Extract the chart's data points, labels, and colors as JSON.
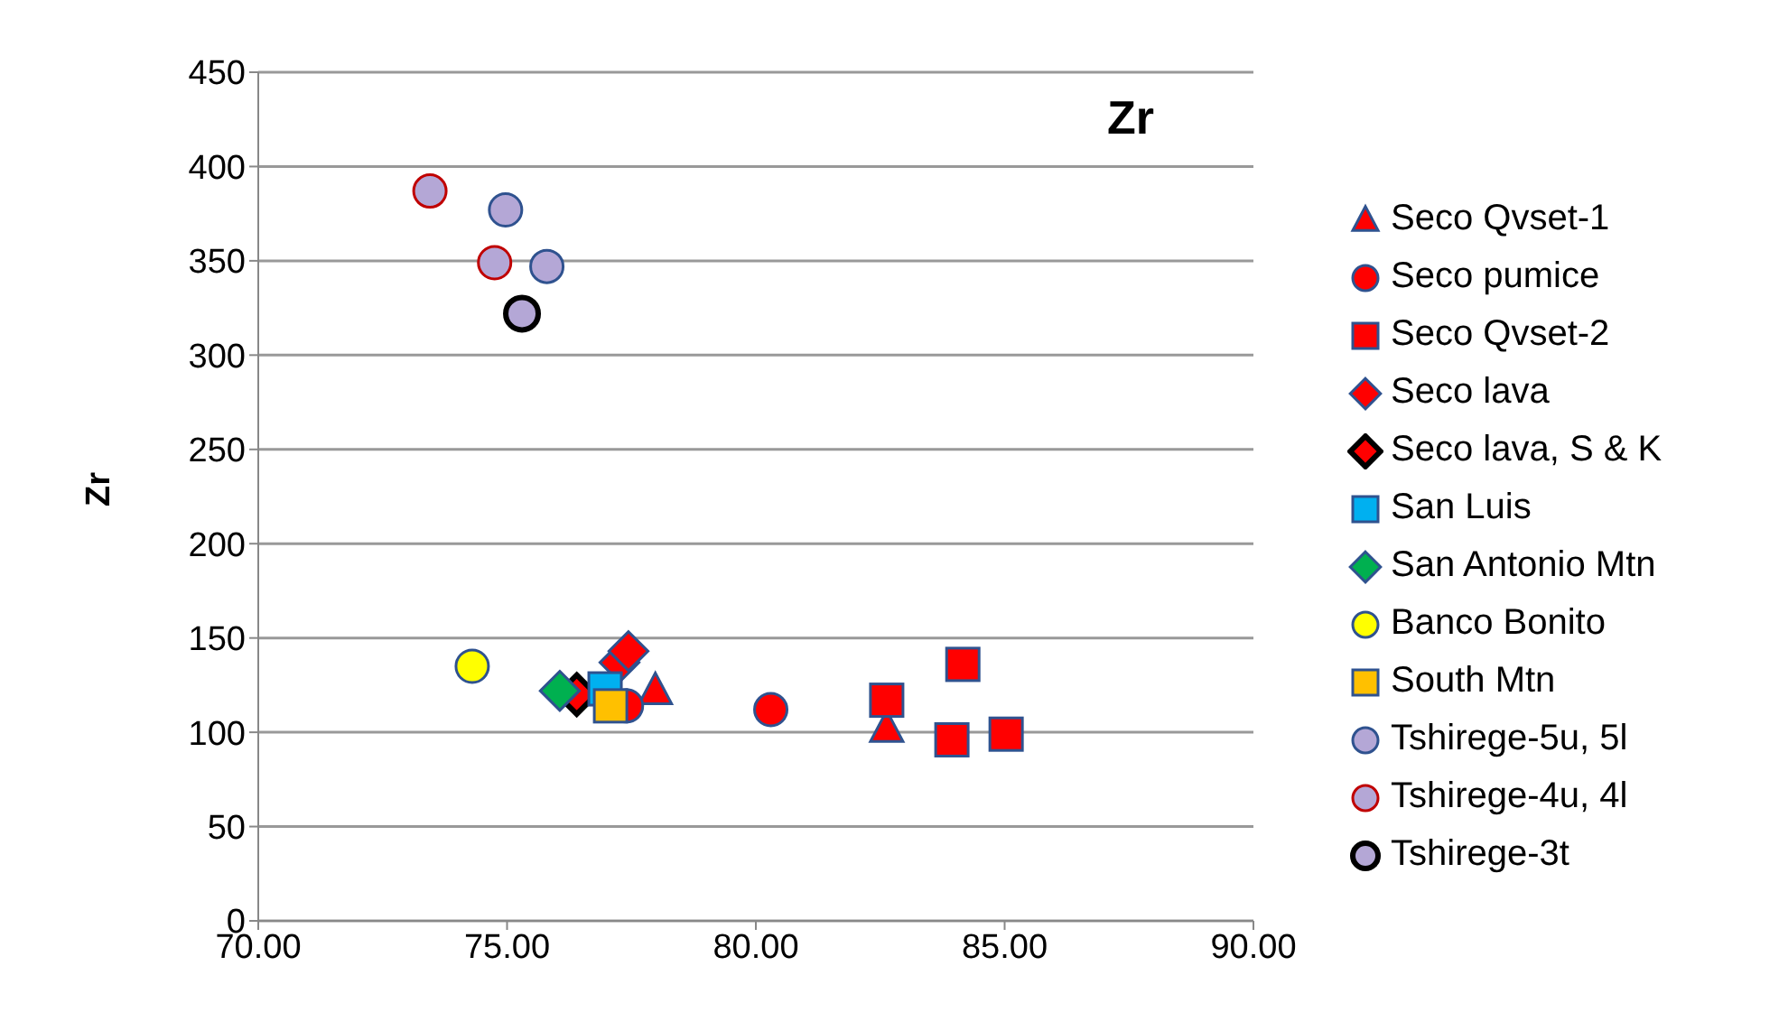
{
  "chart_data": {
    "type": "scatter",
    "title": "Zr",
    "ylabel": "Zr",
    "xlim": [
      70,
      90
    ],
    "xticks": [
      {
        "value": 70,
        "label": "70.00"
      },
      {
        "value": 75,
        "label": "75.00"
      },
      {
        "value": 80,
        "label": "80.00"
      },
      {
        "value": 85,
        "label": "85.00"
      },
      {
        "value": 90,
        "label": "90.00"
      }
    ],
    "ylim": [
      0,
      450
    ],
    "yticks": [
      0,
      50,
      100,
      150,
      200,
      250,
      300,
      350,
      400,
      450
    ],
    "grid": "y",
    "legend": "right",
    "series": [
      {
        "name": "Seco Qvset-1",
        "marker": "triangle",
        "color": "#ff0000",
        "x": [
          77.98,
          82.63
        ],
        "values": [
          122,
          102
        ]
      },
      {
        "name": "Seco pumice",
        "marker": "circle",
        "color": "#ff0000",
        "x": [
          77.4,
          80.3
        ],
        "values": [
          114,
          112
        ]
      },
      {
        "name": "Seco Qvset-2",
        "marker": "square",
        "color": "#ff0000",
        "x": [
          82.63,
          84.16,
          83.94,
          85.03
        ],
        "values": [
          117,
          136,
          96,
          99
        ]
      },
      {
        "name": "Seco lava",
        "marker": "diamond",
        "color": "#ff0000",
        "x": [
          77.26,
          77.44
        ],
        "values": [
          137,
          143
        ]
      },
      {
        "name": "Seco lava, S & K",
        "marker": "diamond",
        "color": "#ff0000",
        "x": [
          76.4
        ],
        "values": [
          120
        ]
      },
      {
        "name": "San Luis",
        "marker": "square",
        "color": "#00b0f0",
        "x": [
          76.97
        ],
        "values": [
          123
        ]
      },
      {
        "name": "San Antonio Mtn",
        "marker": "diamond",
        "color": "#00b050",
        "x": [
          76.06
        ],
        "values": [
          122
        ]
      },
      {
        "name": "Banco Bonito",
        "marker": "circle",
        "color": "#ffff00",
        "x": [
          74.3
        ],
        "values": [
          135
        ]
      },
      {
        "name": "South Mtn",
        "marker": "square",
        "color": "#ffc000",
        "x": [
          77.08
        ],
        "values": [
          114
        ]
      },
      {
        "name": "Tshirege-5u, 5l",
        "marker": "circle",
        "color": "#b4a7d6",
        "x": [
          74.97,
          75.8
        ],
        "values": [
          377,
          347
        ]
      },
      {
        "name": "Tshirege-4u, 4l",
        "marker": "circle",
        "color": "#b4a7d6",
        "x": [
          73.45,
          74.75
        ],
        "values": [
          387,
          349
        ]
      },
      {
        "name": "Tshirege-3t",
        "marker": "circle",
        "color": "#b4a7d6",
        "x": [
          75.3
        ],
        "values": [
          322
        ]
      }
    ]
  }
}
